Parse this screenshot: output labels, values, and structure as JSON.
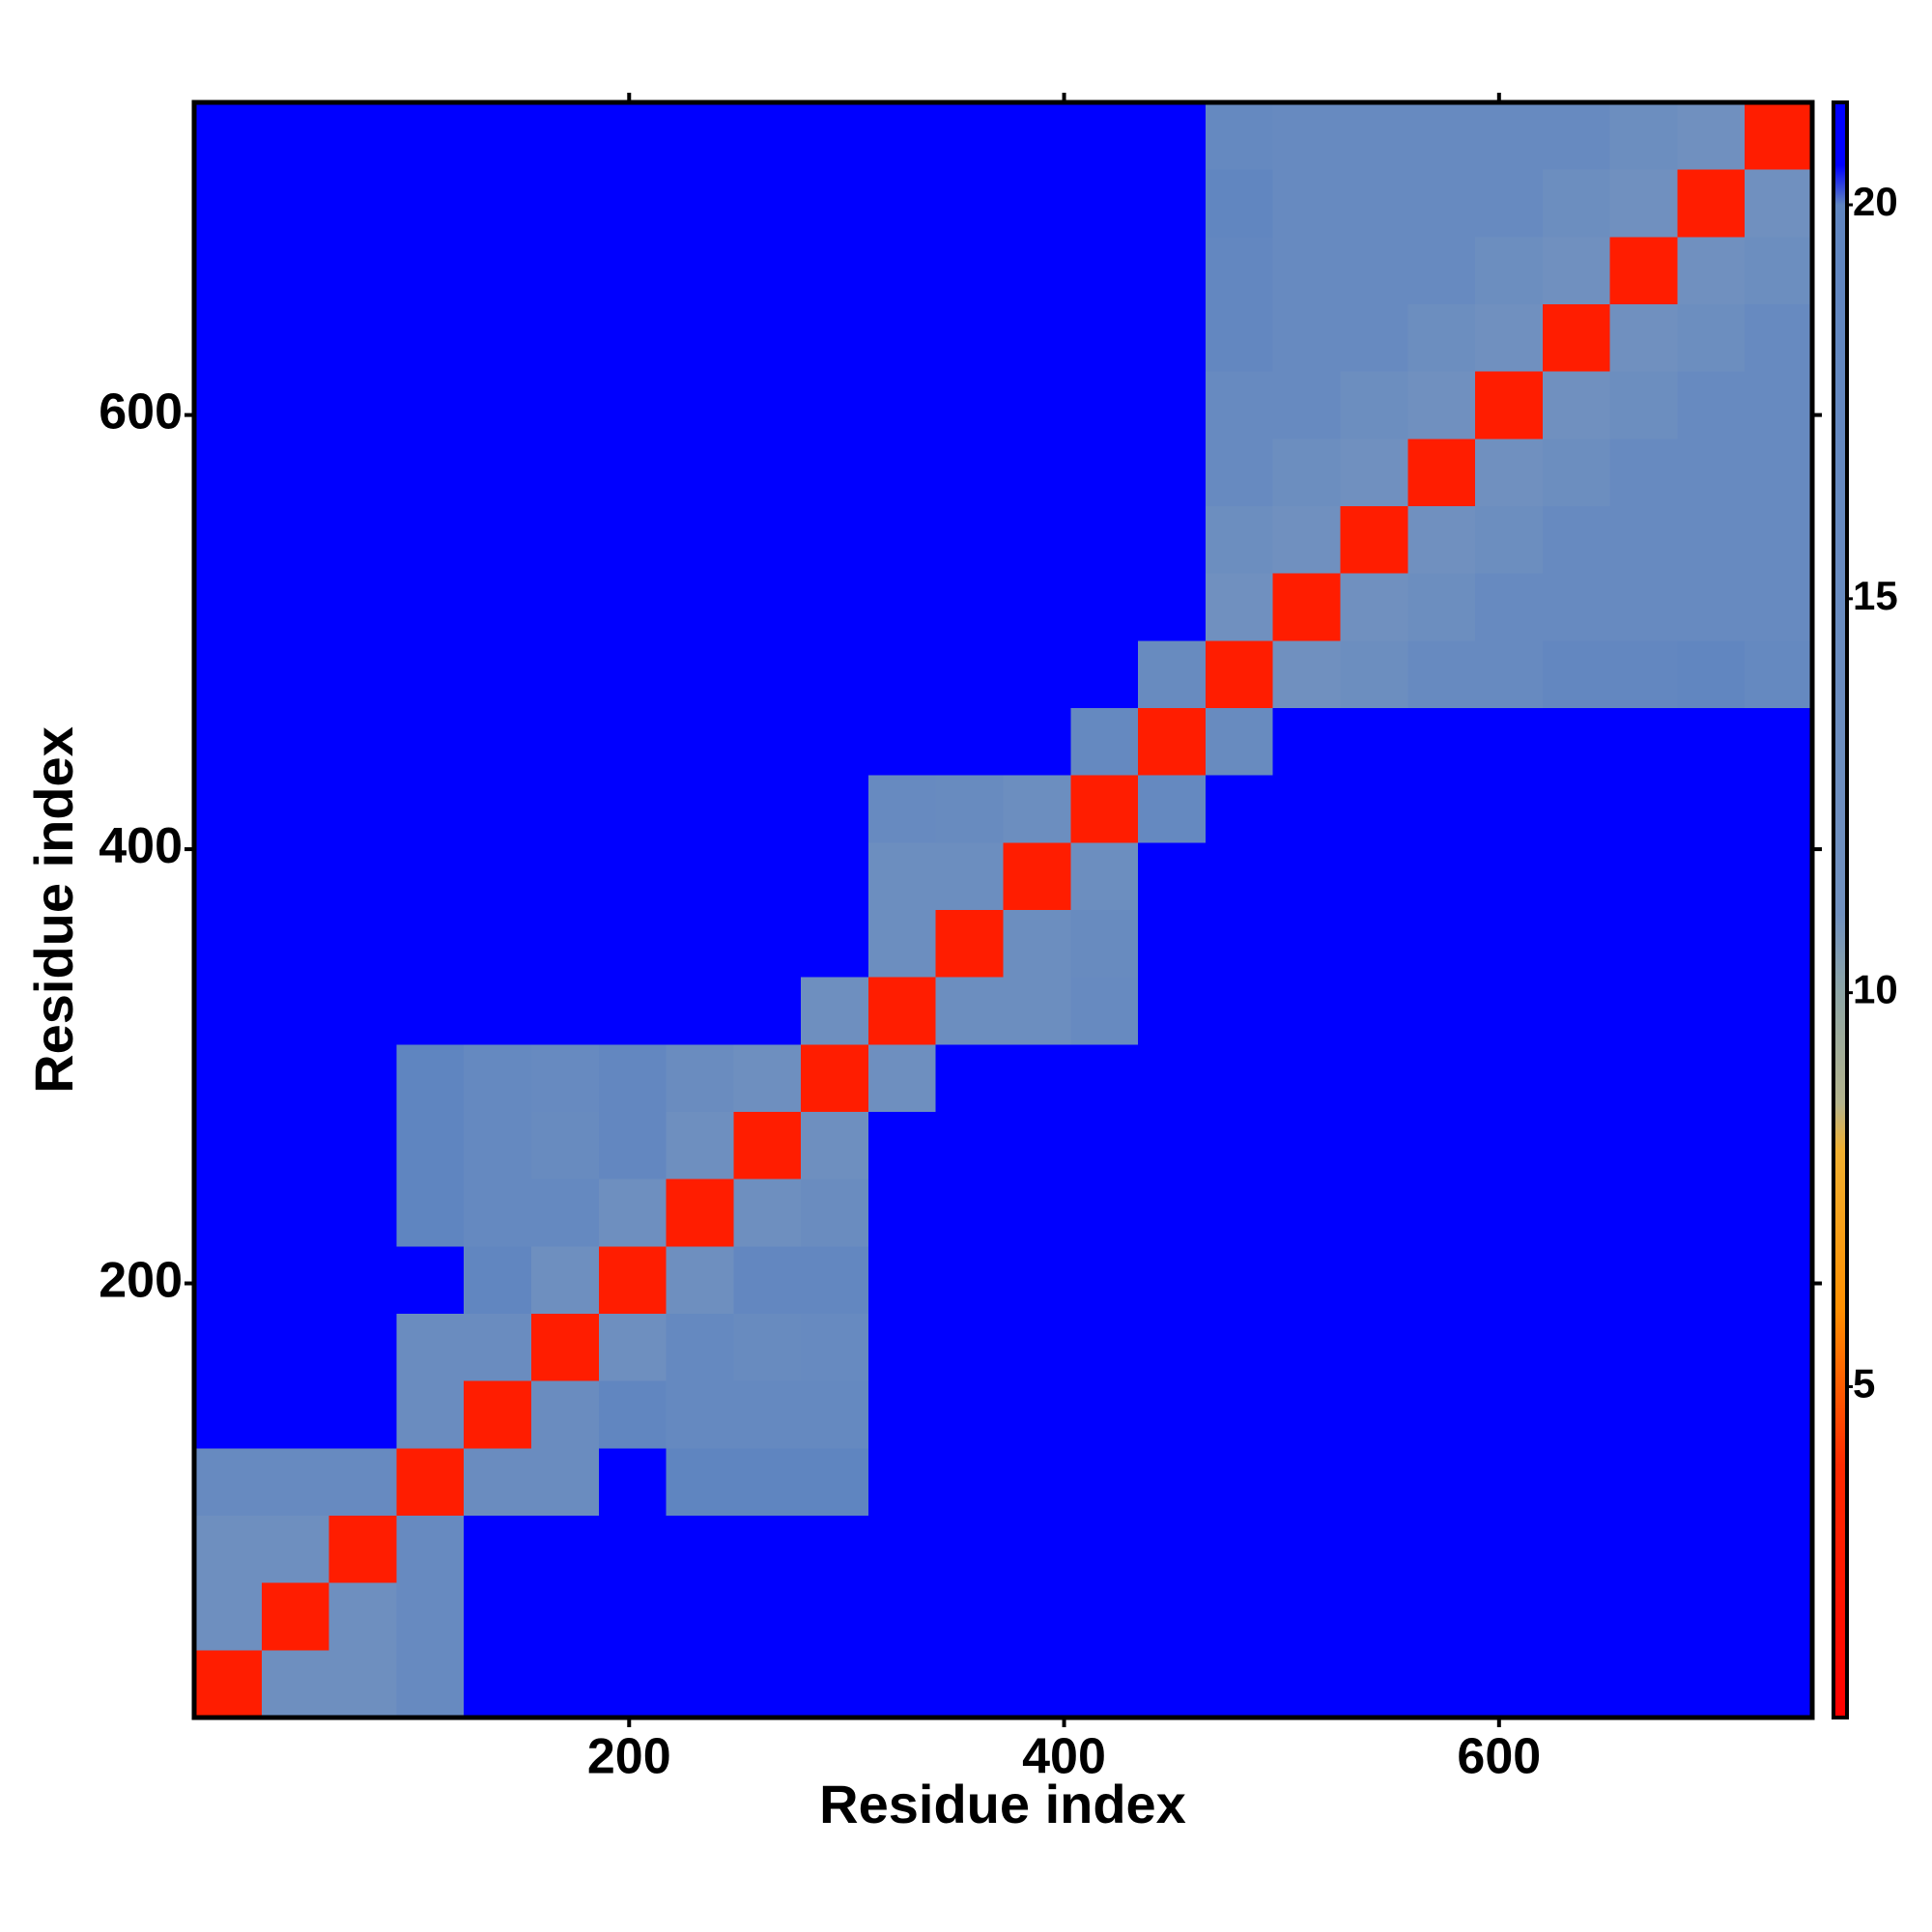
{
  "chart_data": {
    "type": "heatmap",
    "x_label": "Residue index",
    "y_label": "Residue index",
    "xlim": [
      0,
      744
    ],
    "ylim": [
      0,
      744
    ],
    "xticks": [
      200,
      400,
      600
    ],
    "yticks": [
      200,
      400,
      600
    ],
    "x_bins": [
      0,
      31,
      62,
      93,
      124,
      155,
      186,
      217,
      248,
      279,
      310,
      341,
      372,
      403,
      434,
      465,
      496,
      527,
      558,
      589,
      620,
      651,
      682,
      713,
      744
    ],
    "y_bins": [
      0,
      31,
      62,
      93,
      124,
      155,
      186,
      217,
      248,
      279,
      310,
      341,
      372,
      403,
      434,
      465,
      496,
      527,
      558,
      589,
      620,
      651,
      682,
      713,
      744
    ],
    "z": [
      [
        3,
        12,
        12,
        16,
        21,
        21,
        21,
        21,
        21,
        21,
        21,
        21,
        21,
        21,
        21,
        21,
        21,
        21,
        21,
        21,
        21,
        21,
        21,
        21
      ],
      [
        12,
        3,
        12,
        16,
        21,
        21,
        21,
        21,
        21,
        21,
        21,
        21,
        21,
        21,
        21,
        21,
        21,
        21,
        21,
        21,
        21,
        21,
        21,
        21
      ],
      [
        12,
        12,
        3,
        16,
        21,
        21,
        21,
        21,
        21,
        21,
        21,
        21,
        21,
        21,
        21,
        21,
        21,
        21,
        21,
        21,
        21,
        21,
        21,
        21
      ],
      [
        16,
        16,
        16,
        3,
        14,
        14,
        21,
        20,
        20,
        20,
        21,
        21,
        21,
        21,
        21,
        21,
        21,
        21,
        21,
        21,
        21,
        21,
        21,
        21
      ],
      [
        21,
        21,
        21,
        14,
        3,
        14,
        19,
        17,
        17,
        17,
        21,
        21,
        21,
        21,
        21,
        21,
        21,
        21,
        21,
        21,
        21,
        21,
        21,
        21
      ],
      [
        21,
        21,
        21,
        14,
        14,
        3,
        12,
        17,
        15,
        16,
        21,
        21,
        21,
        21,
        21,
        21,
        21,
        21,
        21,
        21,
        21,
        21,
        21,
        21
      ],
      [
        21,
        21,
        21,
        21,
        19,
        12,
        3,
        12,
        18,
        18,
        21,
        21,
        21,
        21,
        21,
        21,
        21,
        21,
        21,
        21,
        21,
        21,
        21,
        21
      ],
      [
        21,
        21,
        21,
        20,
        17,
        17,
        12,
        3,
        12,
        14,
        21,
        21,
        21,
        21,
        21,
        21,
        21,
        21,
        21,
        21,
        21,
        21,
        21,
        21
      ],
      [
        21,
        21,
        21,
        20,
        17,
        15,
        18,
        12,
        3,
        12,
        21,
        21,
        21,
        21,
        21,
        21,
        21,
        21,
        21,
        21,
        21,
        21,
        21,
        21
      ],
      [
        21,
        21,
        21,
        20,
        17,
        16,
        18,
        14,
        12,
        3,
        12,
        21,
        21,
        21,
        21,
        21,
        21,
        21,
        21,
        21,
        21,
        21,
        21,
        21
      ],
      [
        21,
        21,
        21,
        21,
        21,
        21,
        21,
        21,
        21,
        12,
        3,
        13,
        13,
        16,
        21,
        21,
        21,
        21,
        21,
        21,
        21,
        21,
        21,
        21
      ],
      [
        21,
        21,
        21,
        21,
        21,
        21,
        21,
        21,
        21,
        21,
        13,
        3,
        13,
        15,
        21,
        21,
        21,
        21,
        21,
        21,
        21,
        21,
        21,
        21
      ],
      [
        21,
        21,
        21,
        21,
        21,
        21,
        21,
        21,
        21,
        21,
        13,
        13,
        3,
        13,
        21,
        21,
        21,
        21,
        21,
        21,
        21,
        21,
        21,
        21
      ],
      [
        21,
        21,
        21,
        21,
        21,
        21,
        21,
        21,
        21,
        21,
        16,
        15,
        13,
        3,
        17,
        21,
        21,
        21,
        21,
        21,
        21,
        21,
        21,
        21
      ],
      [
        21,
        21,
        21,
        21,
        21,
        21,
        21,
        21,
        21,
        21,
        21,
        21,
        21,
        17,
        3,
        15,
        21,
        21,
        21,
        21,
        21,
        21,
        21,
        21
      ],
      [
        21,
        21,
        21,
        21,
        21,
        21,
        21,
        21,
        21,
        21,
        21,
        21,
        21,
        21,
        15,
        3,
        11,
        13,
        16,
        16,
        18,
        18,
        19,
        17
      ],
      [
        21,
        21,
        21,
        21,
        21,
        21,
        21,
        21,
        21,
        21,
        21,
        21,
        21,
        21,
        21,
        11,
        3,
        11,
        13,
        16,
        16,
        16,
        16,
        16
      ],
      [
        21,
        21,
        21,
        21,
        21,
        21,
        21,
        21,
        21,
        21,
        21,
        21,
        21,
        21,
        21,
        13,
        11,
        3,
        11,
        13,
        16,
        16,
        16,
        16
      ],
      [
        21,
        21,
        21,
        21,
        21,
        21,
        21,
        21,
        21,
        21,
        21,
        21,
        21,
        21,
        21,
        16,
        13,
        11,
        3,
        11,
        13,
        16,
        16,
        16
      ],
      [
        21,
        21,
        21,
        21,
        21,
        21,
        21,
        21,
        21,
        21,
        21,
        21,
        21,
        21,
        21,
        16,
        16,
        13,
        11,
        3,
        11,
        13,
        16,
        16
      ],
      [
        21,
        21,
        21,
        21,
        21,
        21,
        21,
        21,
        21,
        21,
        21,
        21,
        21,
        21,
        21,
        18,
        16,
        16,
        13,
        11,
        3,
        11,
        13,
        16
      ],
      [
        21,
        21,
        21,
        21,
        21,
        21,
        21,
        21,
        21,
        21,
        21,
        21,
        21,
        21,
        21,
        18,
        16,
        16,
        16,
        13,
        11,
        3,
        11,
        13
      ],
      [
        21,
        21,
        21,
        21,
        21,
        21,
        21,
        21,
        21,
        21,
        21,
        21,
        21,
        21,
        21,
        19,
        16,
        16,
        16,
        16,
        13,
        11,
        3,
        11
      ],
      [
        21,
        21,
        21,
        21,
        21,
        21,
        21,
        21,
        21,
        21,
        21,
        21,
        21,
        21,
        21,
        17,
        16,
        16,
        16,
        16,
        16,
        13,
        11,
        3
      ]
    ],
    "colorbar_lim": [
      0.8,
      21.3
    ],
    "colorbar_ticks": [
      5,
      10,
      15,
      20
    ],
    "colorscale": [
      [
        0.8,
        "#ff0000"
      ],
      [
        4,
        "#ff2a00"
      ],
      [
        6,
        "#ff9000"
      ],
      [
        8,
        "#f0b030"
      ],
      [
        8.6,
        "#b4b48c"
      ],
      [
        10,
        "#8ea6a6"
      ],
      [
        11,
        "#7090bf"
      ],
      [
        20,
        "#5f85c0"
      ],
      [
        20.5,
        "#0000ff"
      ],
      [
        21.3,
        "#0000ff"
      ]
    ]
  }
}
